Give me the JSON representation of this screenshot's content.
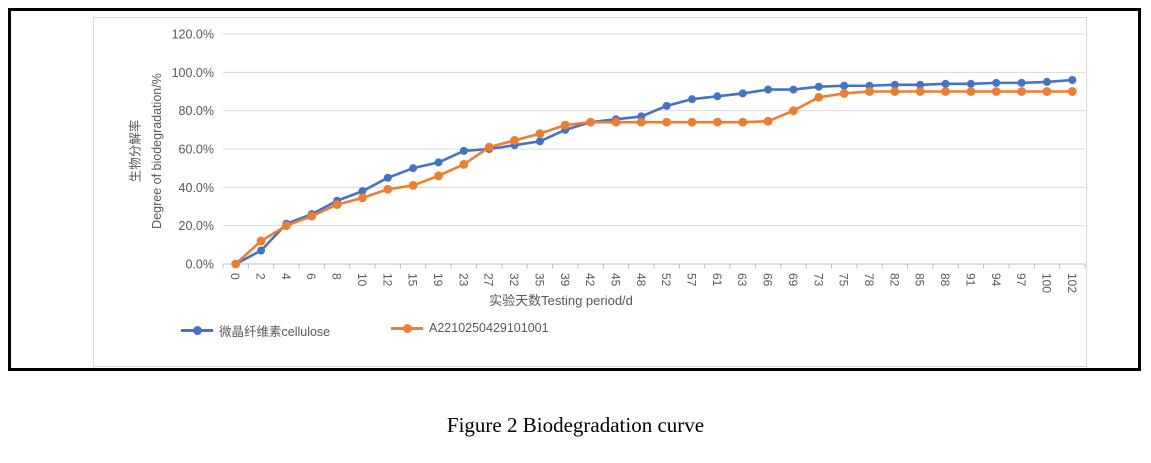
{
  "caption": "Figure 2 Biodegradation curve",
  "chart_data": {
    "type": "line",
    "title": "",
    "xlabel": "实验天数Testing period/d",
    "ylabel": "生物分解率 Degree of biodegradation/%",
    "ylabel_lines": [
      "生物分解率",
      "Degree of biodegradation/%"
    ],
    "categories": [
      0,
      2,
      4,
      6,
      8,
      10,
      12,
      15,
      19,
      23,
      27,
      32,
      35,
      39,
      42,
      45,
      48,
      52,
      57,
      61,
      63,
      66,
      69,
      73,
      75,
      78,
      82,
      85,
      88,
      91,
      94,
      97,
      100,
      102
    ],
    "y_ticks": [
      "0.0%",
      "20.0%",
      "40.0%",
      "60.0%",
      "80.0%",
      "100.0%",
      "120.0%"
    ],
    "ylim": [
      0,
      120
    ],
    "grid": true,
    "legend_position": "bottom",
    "axis_text_color": "#595959",
    "gridline_color": "#D9D9D9",
    "axis_line_color": "#BFBFBF",
    "series": [
      {
        "name": "微晶纤维素cellulose",
        "color": "#4472C4",
        "values": [
          0,
          7,
          21,
          26,
          33,
          38,
          45,
          50,
          53,
          59,
          60,
          62,
          64,
          70,
          74,
          75.5,
          77,
          82.5,
          86,
          87.5,
          89,
          91,
          91,
          92.5,
          93,
          93,
          93.5,
          93.5,
          94,
          94,
          94.5,
          94.5,
          95,
          96
        ]
      },
      {
        "name": "A2210250429101001",
        "color": "#ED7D31",
        "values": [
          0,
          12,
          20,
          25,
          31,
          34.5,
          39,
          41,
          46,
          52,
          61,
          64.5,
          68,
          72.5,
          74,
          74,
          74,
          74,
          74,
          74,
          74,
          74.5,
          80,
          87,
          89,
          90,
          90,
          90,
          90,
          90,
          90,
          90,
          90,
          90
        ]
      }
    ]
  }
}
